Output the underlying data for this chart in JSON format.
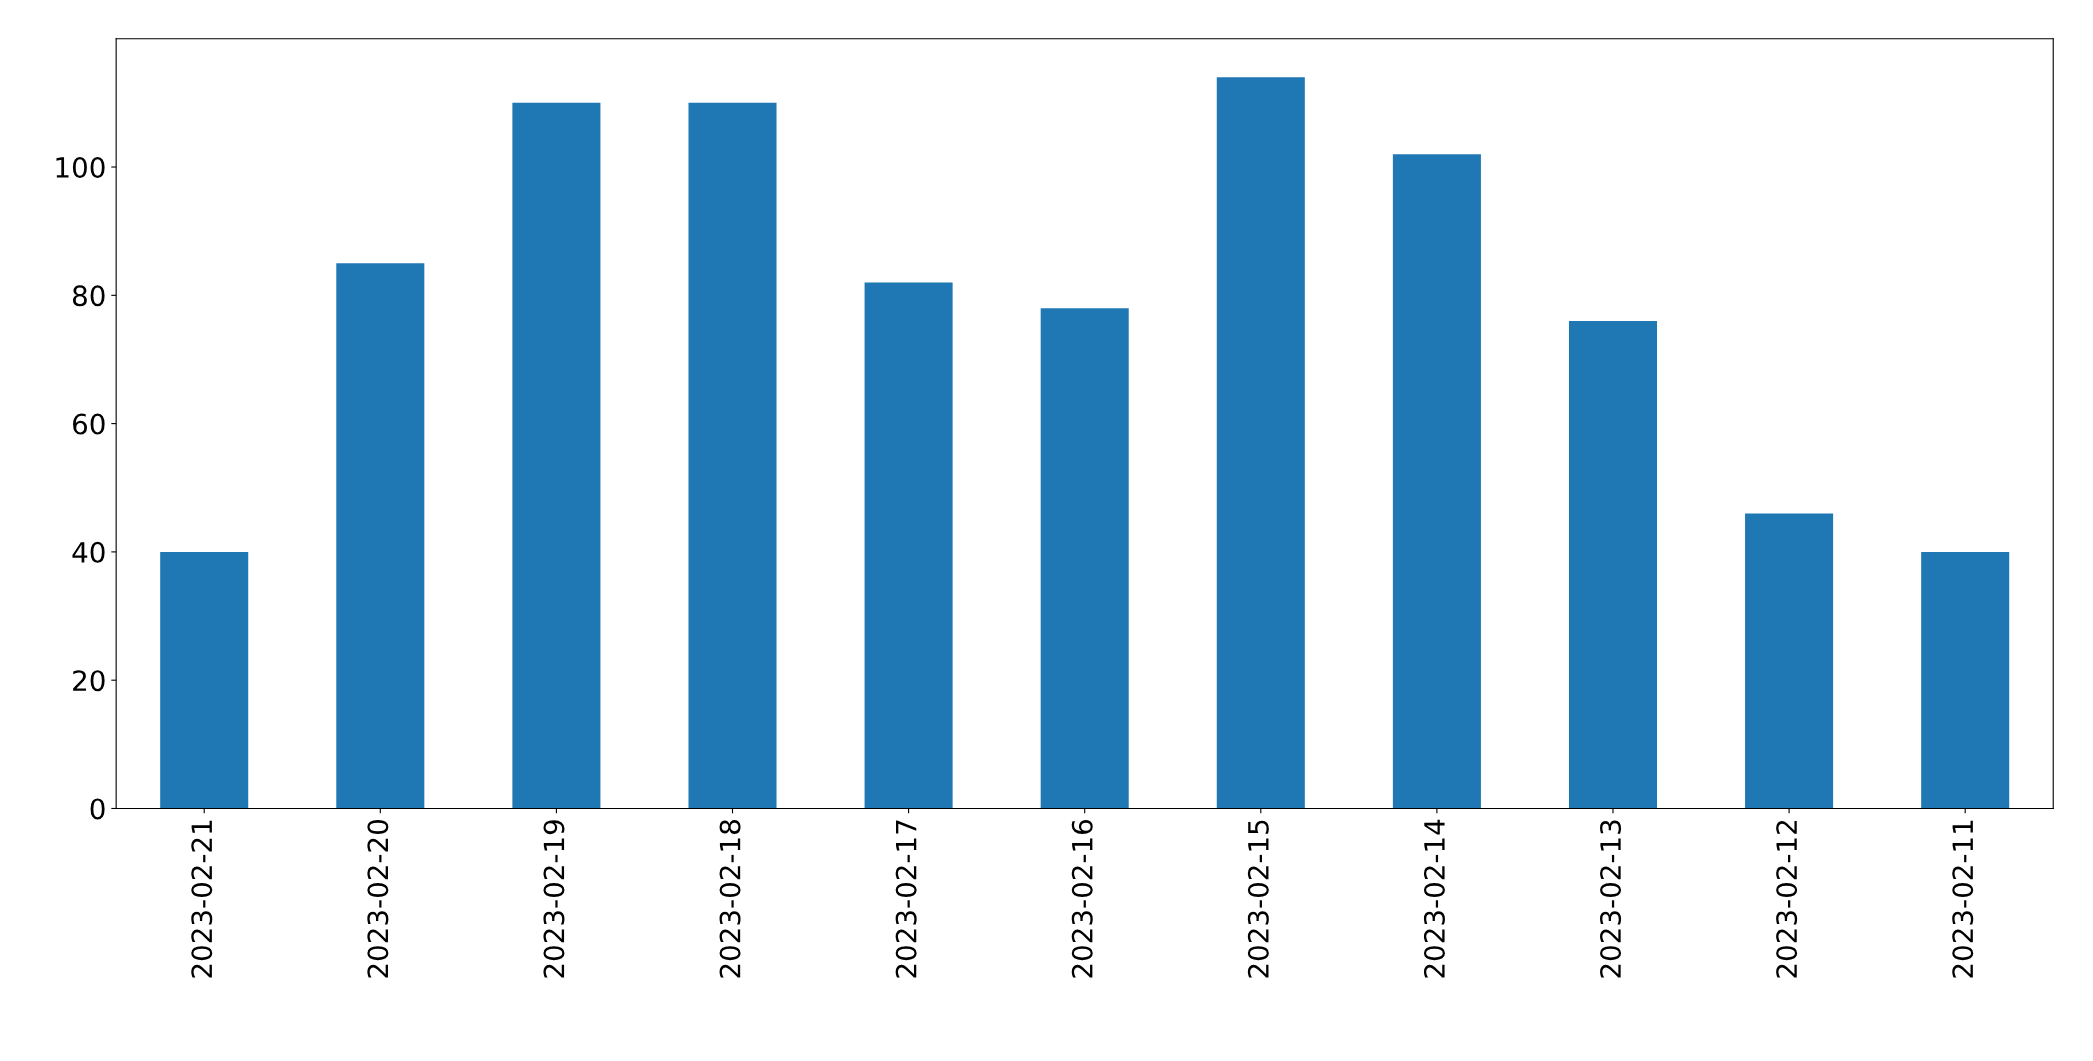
{
  "chart_data": {
    "type": "bar",
    "categories": [
      "2023-02-21",
      "2023-02-20",
      "2023-02-19",
      "2023-02-18",
      "2023-02-17",
      "2023-02-16",
      "2023-02-15",
      "2023-02-14",
      "2023-02-13",
      "2023-02-12",
      "2023-02-11"
    ],
    "values": [
      40,
      85,
      110,
      110,
      82,
      78,
      114,
      102,
      76,
      46,
      40
    ],
    "color": "#1f77b4",
    "ylim": [
      0,
      120
    ],
    "yticks": [
      0,
      20,
      40,
      60,
      80,
      100
    ],
    "grid": false,
    "legend": false
  }
}
